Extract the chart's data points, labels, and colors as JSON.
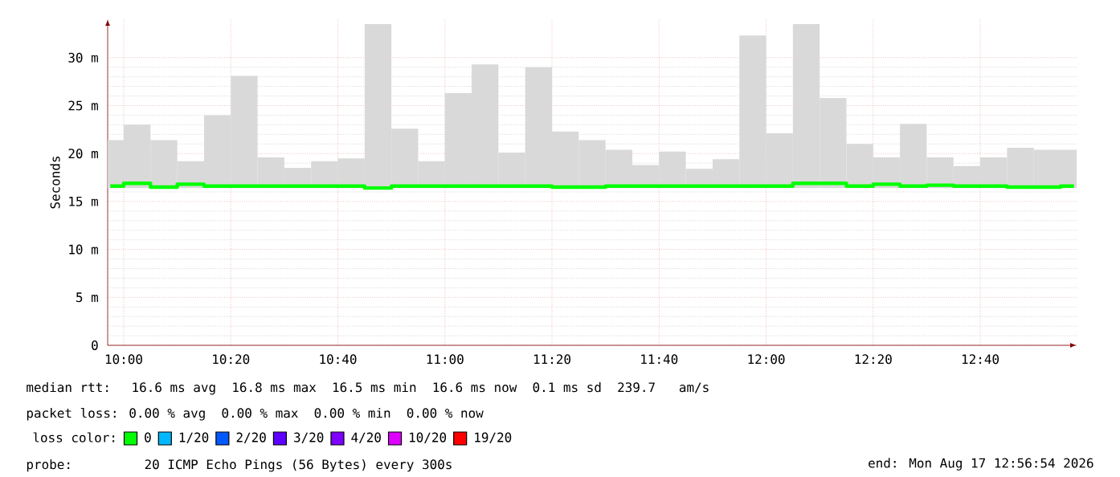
{
  "chart_data": {
    "type": "bar",
    "ylabel": "Seconds",
    "legend_title": "loss color:",
    "legend": "bottom",
    "grid": true,
    "x": [
      9.958333,
      10.041667,
      10.125,
      10.208333,
      10.291667,
      10.375,
      10.458333,
      10.541667,
      10.625,
      10.708333,
      10.791667,
      10.875,
      10.958333,
      11.041667,
      11.125,
      11.208333,
      11.291667,
      11.375,
      11.458333,
      11.541667,
      11.625,
      11.708333,
      11.791667,
      11.875,
      11.958333,
      12.041667,
      12.125,
      12.208333,
      12.291667,
      12.375,
      12.458333,
      12.541667,
      12.625,
      12.708333,
      12.791667,
      12.875,
      12.958333
    ],
    "xlim": [
      9.95,
      12.9667
    ],
    "xticks": [
      {
        "value": 10,
        "label": "10:00"
      },
      {
        "value": 10.333333,
        "label": "10:20"
      },
      {
        "value": 10.666667,
        "label": "10:40"
      },
      {
        "value": 11,
        "label": "11:00"
      },
      {
        "value": 11.333333,
        "label": "11:20"
      },
      {
        "value": 11.666667,
        "label": "11:40"
      },
      {
        "value": 12,
        "label": "12:00"
      },
      {
        "value": 12.333333,
        "label": "12:20"
      },
      {
        "value": 12.666667,
        "label": "12:40"
      }
    ],
    "ylim": [
      0,
      34
    ],
    "yticks": [
      0,
      {
        "value": 5,
        "label": "5 m"
      },
      {
        "value": 10,
        "label": "10 m"
      },
      {
        "value": 15,
        "label": "15 m"
      },
      {
        "value": 20,
        "label": "20 m"
      },
      {
        "value": 25,
        "label": "25 m"
      },
      {
        "value": 30,
        "label": "30 m"
      }
    ],
    "series": [
      {
        "color": "#d9d9d9",
        "base": [
          16.4,
          16.4,
          16.4,
          16.4,
          16.4,
          16.4,
          16.4,
          16.4,
          16.4,
          16.4,
          16.4,
          16.4,
          16.4,
          16.4,
          16.4,
          16.4,
          16.4,
          16.4,
          16.4,
          16.4,
          16.4,
          16.4,
          16.4,
          16.4,
          16.4,
          16.4,
          16.4,
          16.4,
          16.4,
          16.4,
          16.4,
          16.4,
          16.4,
          16.4,
          16.4,
          16.4,
          16.4
        ],
        "values": [
          5.0,
          6.6,
          5.0,
          2.8,
          7.6,
          11.7,
          3.2,
          2.1,
          2.8,
          3.1,
          17.1,
          6.2,
          2.8,
          9.9,
          12.9,
          3.7,
          12.6,
          5.9,
          5.0,
          4.0,
          2.4,
          3.8,
          2.0,
          3.0,
          15.9,
          5.7,
          17.1,
          9.4,
          4.6,
          3.2,
          6.7,
          3.2,
          2.3,
          3.2,
          4.2,
          4.0,
          4.0
        ]
      },
      {
        "type": "step",
        "name": "0",
        "color": "#00ff00",
        "values": [
          16.6,
          16.9,
          16.5,
          16.8,
          16.6,
          16.6,
          16.6,
          16.6,
          16.6,
          16.6,
          16.4,
          16.6,
          16.6,
          16.6,
          16.6,
          16.6,
          16.6,
          16.5,
          16.5,
          16.6,
          16.6,
          16.6,
          16.6,
          16.6,
          16.6,
          16.6,
          16.9,
          16.9,
          16.6,
          16.8,
          16.6,
          16.7,
          16.6,
          16.6,
          16.5,
          16.5,
          16.6
        ]
      },
      {
        "type": "step",
        "name": "1/20",
        "color": "#00b8ff",
        "values": [
          null,
          null,
          null,
          null,
          null,
          null,
          null,
          null,
          null,
          null,
          null,
          null,
          null,
          null,
          null,
          null,
          null,
          null,
          null,
          null,
          null,
          null,
          null,
          null,
          null,
          null,
          null,
          null,
          null,
          null,
          null,
          null,
          null,
          null,
          null,
          null,
          null
        ]
      },
      {
        "type": "step",
        "name": "2/20",
        "color": "#0059ff",
        "values": [
          null,
          null,
          null,
          null,
          null,
          null,
          null,
          null,
          null,
          null,
          null,
          null,
          null,
          null,
          null,
          null,
          null,
          null,
          null,
          null,
          null,
          null,
          null,
          null,
          null,
          null,
          null,
          null,
          null,
          null,
          null,
          null,
          null,
          null,
          null,
          null,
          null
        ]
      },
      {
        "type": "step",
        "name": "3/20",
        "color": "#5e00ff",
        "values": [
          null,
          null,
          null,
          null,
          null,
          null,
          null,
          null,
          null,
          null,
          null,
          null,
          null,
          null,
          null,
          null,
          null,
          null,
          null,
          null,
          null,
          null,
          null,
          null,
          null,
          null,
          null,
          null,
          null,
          null,
          null,
          null,
          null,
          null,
          null,
          null,
          null
        ]
      },
      {
        "type": "step",
        "name": "4/20",
        "color": "#7e00ff",
        "values": [
          null,
          null,
          null,
          null,
          null,
          null,
          null,
          null,
          null,
          null,
          null,
          null,
          null,
          null,
          null,
          null,
          null,
          null,
          null,
          null,
          null,
          null,
          null,
          null,
          null,
          null,
          null,
          null,
          null,
          null,
          null,
          null,
          null,
          null,
          null,
          null,
          null
        ]
      },
      {
        "type": "step",
        "name": "10/20",
        "color": "#dd00ff",
        "values": [
          null,
          null,
          null,
          null,
          null,
          null,
          null,
          null,
          null,
          null,
          null,
          null,
          null,
          null,
          null,
          null,
          null,
          null,
          null,
          null,
          null,
          null,
          null,
          null,
          null,
          null,
          null,
          null,
          null,
          null,
          null,
          null,
          null,
          null,
          null,
          null,
          null
        ]
      },
      {
        "type": "step",
        "name": "19/20",
        "color": "#ff0000",
        "values": [
          null,
          null,
          null,
          null,
          null,
          null,
          null,
          null,
          null,
          null,
          null,
          null,
          null,
          null,
          null,
          null,
          null,
          null,
          null,
          null,
          null,
          null,
          null,
          null,
          null,
          null,
          null,
          null,
          null,
          null,
          null,
          null,
          null,
          null,
          null,
          null,
          null
        ]
      }
    ],
    "annotations": [
      "median rtt:  16.6 ms avg  16.8 ms max  16.5 ms min  16.6 ms now  0.1 ms sd  239.7   am/s",
      "packet loss: 0.00 % avg  0.00 % max  0.00 % min  0.00 % now",
      "probe:       20 ICMP Echo Pings (56 Bytes) every 300s",
      "end: Mon Aug 17 12:56:54 2026"
    ]
  }
}
